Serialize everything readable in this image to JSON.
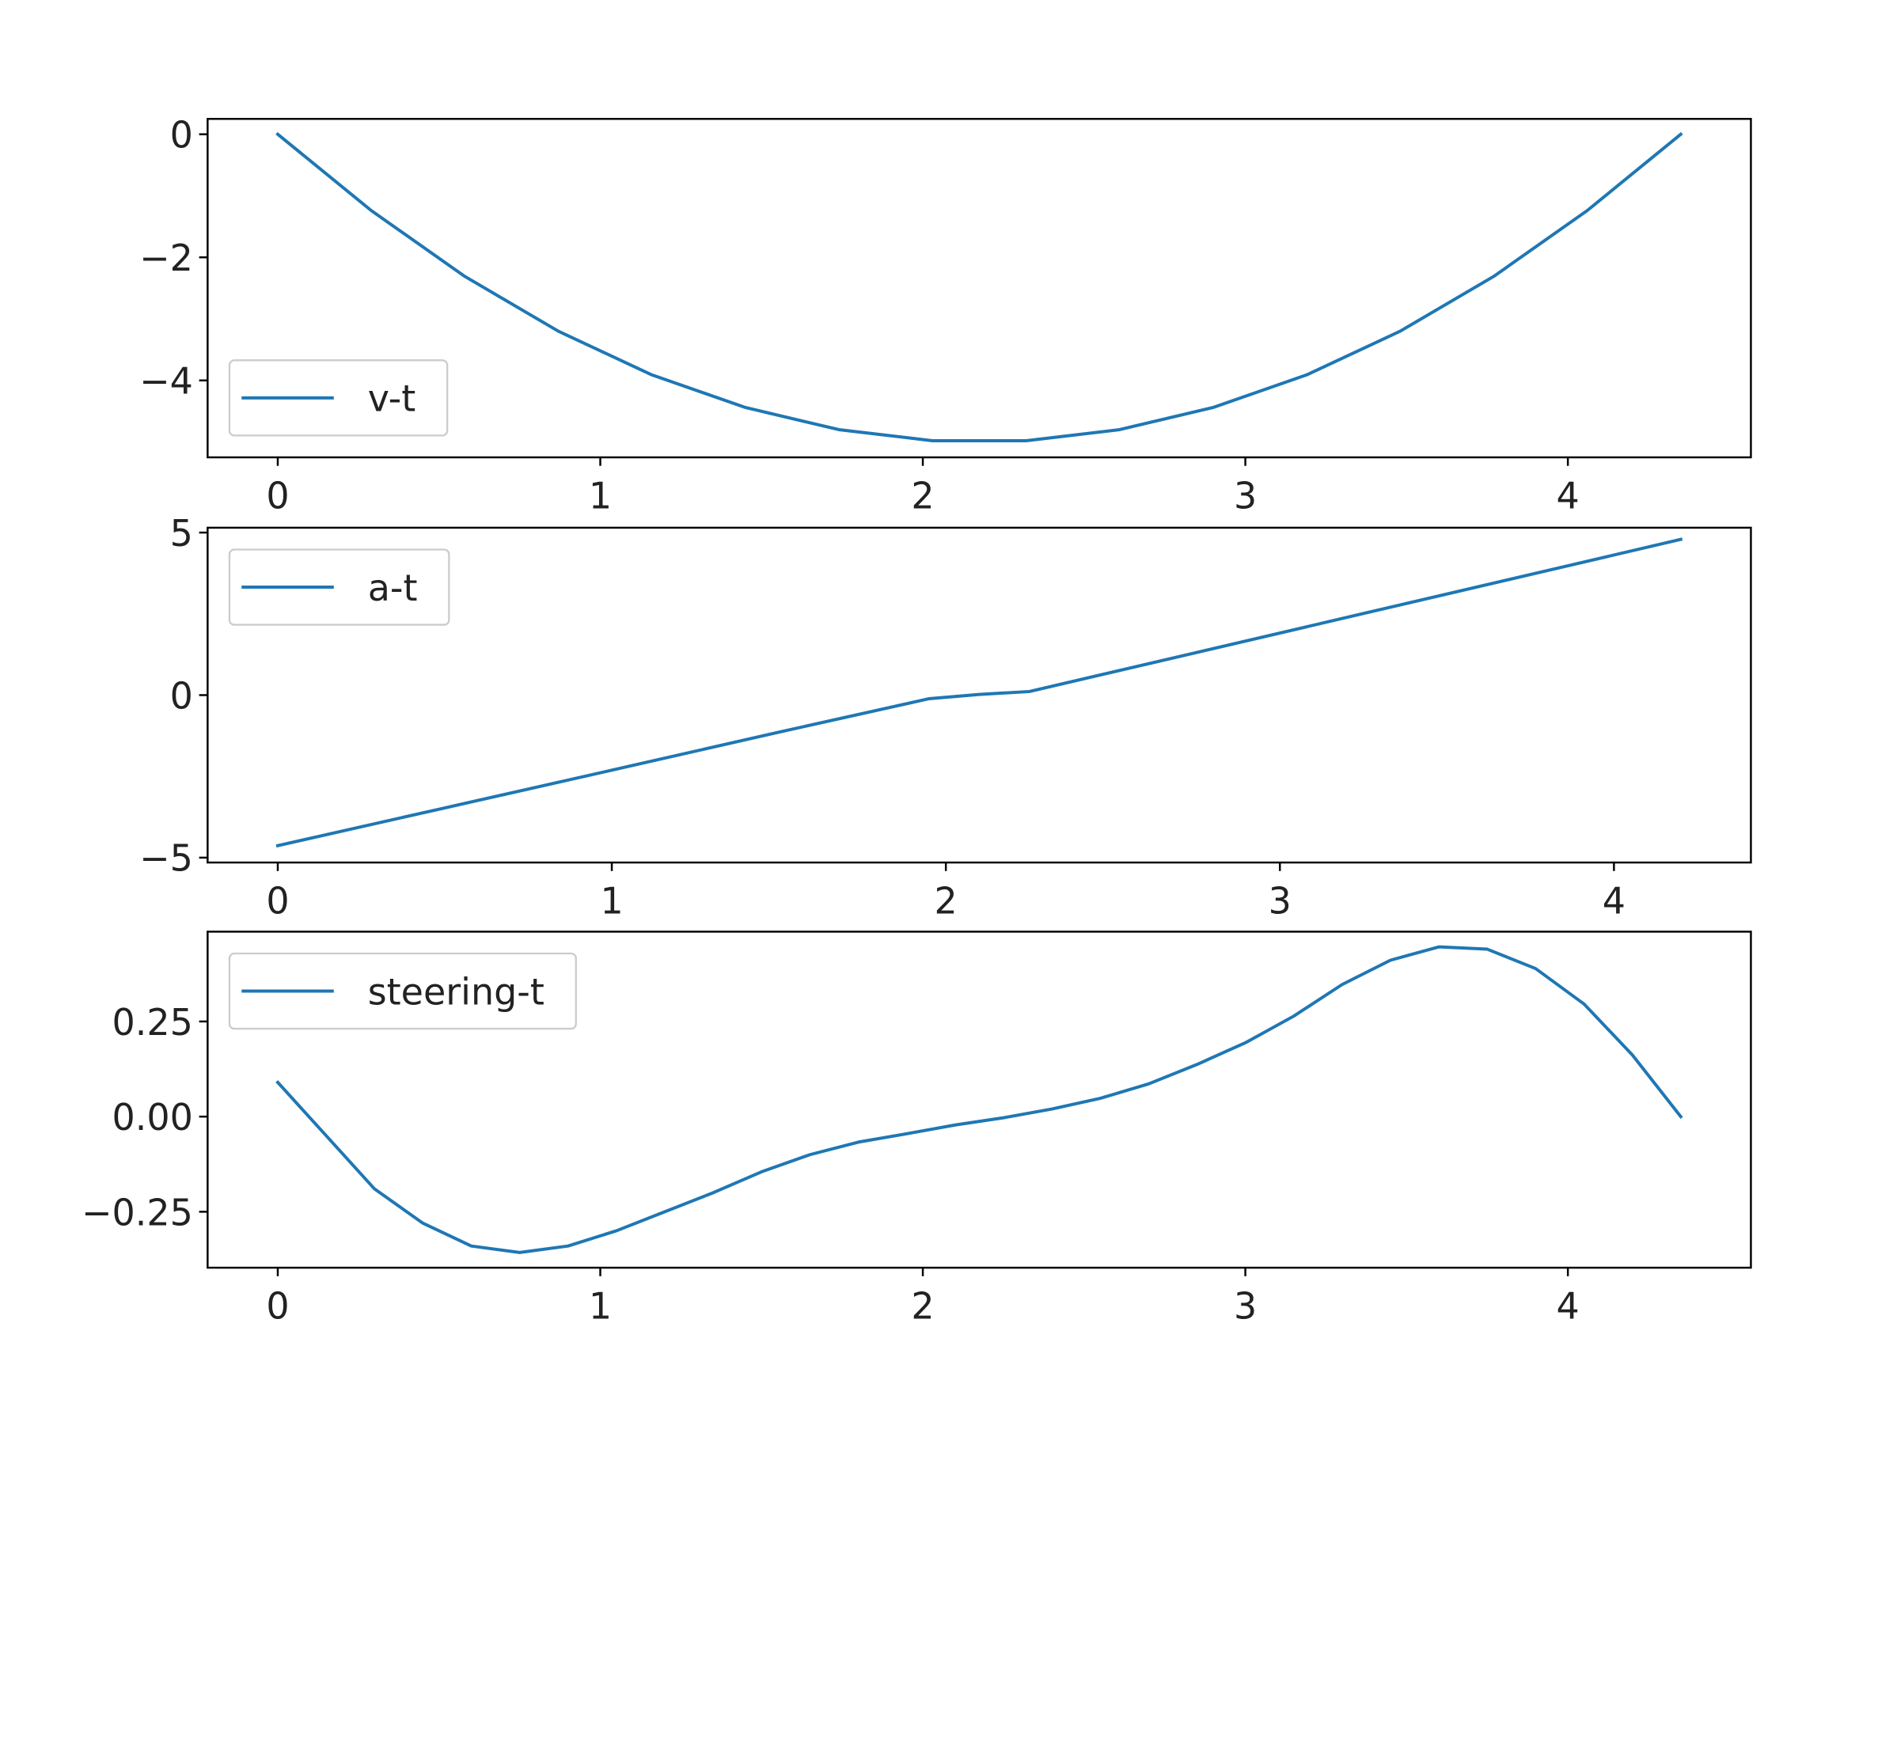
{
  "chart_data": [
    {
      "type": "line",
      "x": [
        0,
        0.29,
        0.58,
        0.87,
        1.16,
        1.45,
        1.74,
        2.03,
        2.32,
        2.61,
        2.9,
        3.19,
        3.48,
        3.77,
        4.06,
        4.35
      ],
      "series": [
        {
          "name": "v-t",
          "color": "#1f77b4",
          "values": [
            0,
            -1.24,
            -2.31,
            -3.2,
            -3.91,
            -4.44,
            -4.8,
            -4.98,
            -4.98,
            -4.8,
            -4.44,
            -3.91,
            -3.2,
            -2.31,
            -1.24,
            0
          ]
        }
      ],
      "xlim": [
        -0.2175,
        4.5675
      ],
      "ylim": [
        -5.25,
        0.25
      ],
      "xticks": [
        0,
        1,
        2,
        3,
        4
      ],
      "yticks": [
        {
          "value": -4,
          "label": "−4"
        },
        {
          "value": -2,
          "label": "−2"
        },
        0
      ],
      "legend": "lower left"
    },
    {
      "type": "line",
      "x": [
        0,
        0.5,
        1,
        1.5,
        1.95,
        2.1,
        2.25,
        2.75,
        3.25,
        3.75,
        4.2
      ],
      "series": [
        {
          "name": "a-t",
          "color": "#1f77b4",
          "values": [
            -4.63,
            -3.47,
            -2.31,
            -1.14,
            -0.11,
            0.02,
            0.11,
            1.31,
            2.51,
            3.71,
            4.79
          ]
        }
      ],
      "xlim": [
        -0.21,
        4.41
      ],
      "ylim": [
        -5.15,
        5.15
      ],
      "xticks": [
        0,
        1,
        2,
        3,
        4
      ],
      "yticks": [
        {
          "value": -5,
          "label": "−5"
        },
        0,
        5
      ],
      "legend": "upper left"
    },
    {
      "type": "line",
      "x": [
        0,
        0.15,
        0.3,
        0.45,
        0.6,
        0.75,
        0.9,
        1.05,
        1.2,
        1.35,
        1.5,
        1.65,
        1.8,
        1.95,
        2.1,
        2.25,
        2.4,
        2.55,
        2.7,
        2.85,
        3.0,
        3.15,
        3.3,
        3.45,
        3.6,
        3.75,
        3.9,
        4.05,
        4.2,
        4.35
      ],
      "series": [
        {
          "name": "steering-t",
          "color": "#1f77b4",
          "values": [
            0.09,
            -0.05,
            -0.19,
            -0.28,
            -0.34,
            -0.357,
            -0.34,
            -0.3,
            -0.25,
            -0.2,
            -0.145,
            -0.1,
            -0.067,
            -0.045,
            -0.022,
            -0.003,
            0.02,
            0.048,
            0.086,
            0.137,
            0.194,
            0.264,
            0.347,
            0.411,
            0.446,
            0.44,
            0.389,
            0.296,
            0.162,
            0
          ]
        }
      ],
      "xlim": [
        -0.2175,
        4.5675
      ],
      "ylim": [
        -0.397,
        0.486
      ],
      "xticks": [
        0,
        1,
        2,
        3,
        4
      ],
      "yticks": [
        {
          "value": -0.25,
          "label": "−0.25"
        },
        {
          "value": 0,
          "label": "0.00"
        },
        0.25
      ],
      "legend": "upper left"
    }
  ]
}
